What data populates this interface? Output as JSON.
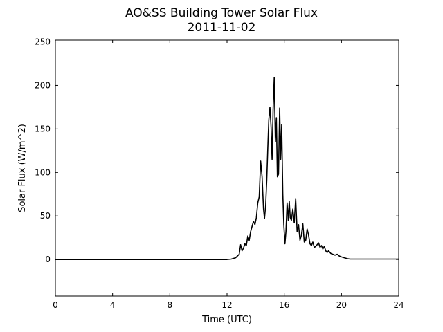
{
  "chart_data": {
    "type": "line",
    "title": "AO&SS Building Tower Solar Flux",
    "subtitle": "2011-11-02",
    "xlabel": "Time (UTC)",
    "ylabel": "Solar Flux (W/m^2)",
    "xlim": [
      0,
      24
    ],
    "ylim": [
      -42,
      252
    ],
    "xticks": [
      0,
      4,
      8,
      12,
      16,
      20,
      24
    ],
    "yticks": [
      0,
      50,
      100,
      150,
      200,
      250
    ],
    "grid": false,
    "legend": "none",
    "line_color": "#000000",
    "series": [
      {
        "x": [
          0,
          1,
          2,
          3,
          4,
          5,
          6,
          7,
          8,
          9,
          10,
          11,
          12,
          12.3,
          12.6,
          12.85,
          12.95,
          13.05,
          13.15,
          13.25,
          13.35,
          13.45,
          13.55,
          13.65,
          13.75,
          13.85,
          13.95,
          14.05,
          14.15,
          14.25,
          14.35,
          14.45,
          14.55,
          14.62,
          14.7,
          14.78,
          14.85,
          14.92,
          15.0,
          15.08,
          15.15,
          15.22,
          15.3,
          15.38,
          15.45,
          15.52,
          15.6,
          15.68,
          15.75,
          15.82,
          15.9,
          15.97,
          16.05,
          16.12,
          16.2,
          16.28,
          16.35,
          16.42,
          16.5,
          16.6,
          16.7,
          16.8,
          16.9,
          17.0,
          17.1,
          17.2,
          17.3,
          17.4,
          17.5,
          17.6,
          17.7,
          17.8,
          17.9,
          18.0,
          18.1,
          18.2,
          18.3,
          18.4,
          18.5,
          18.6,
          18.7,
          18.8,
          18.9,
          19.0,
          19.1,
          19.25,
          19.4,
          19.55,
          19.7,
          19.85,
          20.0,
          20.2,
          20.4,
          20.6,
          20.8,
          21.0,
          21.3,
          21.6,
          21.9,
          22.2,
          22.6,
          23.0,
          23.5,
          24.0
        ],
        "y": [
          0,
          0,
          0,
          0,
          0,
          0,
          0,
          0,
          0,
          0,
          0,
          0,
          0,
          0.5,
          2,
          6,
          17,
          10,
          13,
          18,
          16,
          27,
          22,
          32,
          38,
          44,
          40,
          48,
          65,
          72,
          113,
          95,
          58,
          47,
          62,
          92,
          128,
          160,
          175,
          152,
          115,
          172,
          209,
          135,
          163,
          95,
          98,
          174,
          115,
          155,
          75,
          40,
          18,
          32,
          65,
          45,
          67,
          48,
          45,
          58,
          42,
          70,
          32,
          40,
          22,
          28,
          41,
          20,
          22,
          35,
          28,
          18,
          16,
          20,
          14,
          15,
          17,
          19,
          14,
          16,
          12,
          15,
          10,
          8,
          10,
          7,
          6,
          5,
          6,
          4,
          3,
          2,
          1,
          0.5,
          0.5,
          0.5,
          0.5,
          0.5,
          0.5,
          0.5,
          0.5,
          0.5,
          0.5,
          0.5
        ],
        "linewidth": 1.6
      }
    ]
  }
}
